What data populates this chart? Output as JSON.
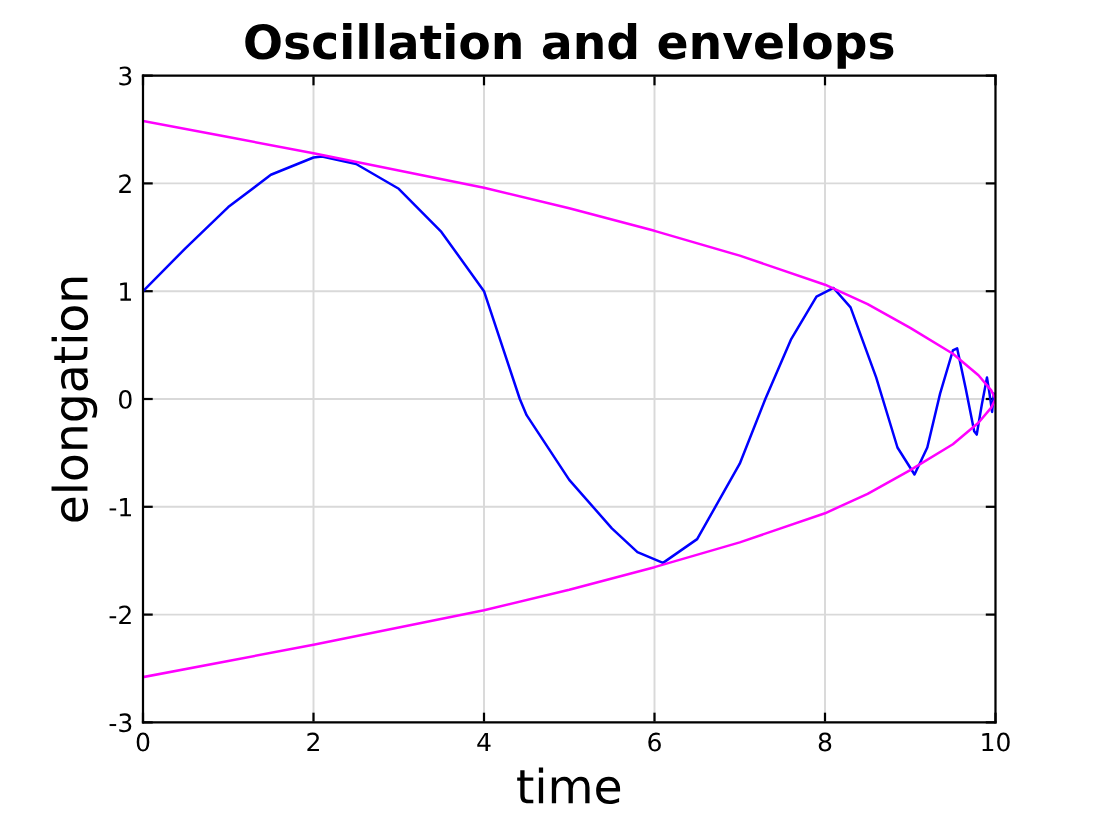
{
  "chart_data": {
    "type": "line",
    "title": "Oscillation and envelops",
    "xlabel": "time",
    "ylabel": "elongation",
    "xlim": [
      0,
      10
    ],
    "ylim": [
      -3,
      3
    ],
    "xticks": [
      0,
      2,
      4,
      6,
      8,
      10
    ],
    "yticks": [
      -3,
      -2,
      -1,
      0,
      1,
      2,
      3
    ],
    "grid": true,
    "series": [
      {
        "color": "#0000ff",
        "x": [
          0,
          0.5,
          1,
          1.5,
          2,
          2.1,
          2.5,
          3,
          3.5,
          4,
          4.42,
          4.5,
          5,
          5.5,
          5.8,
          6.1,
          6.5,
          7,
          7.3,
          7.6,
          7.9,
          8.1,
          8.3,
          8.6,
          8.85,
          9.05,
          9.2,
          9.35,
          9.5,
          9.55,
          9.65,
          9.75,
          9.78,
          9.84,
          9.9,
          9.93,
          9.96,
          9.98,
          10
        ],
        "values": [
          1.0,
          1.4,
          1.78,
          2.08,
          2.24,
          2.25,
          2.18,
          1.95,
          1.55,
          1.0,
          0,
          -0.15,
          -0.75,
          -1.2,
          -1.42,
          -1.52,
          -1.3,
          -0.6,
          0,
          0.55,
          0.95,
          1.03,
          0.85,
          0.2,
          -0.45,
          -0.7,
          -0.45,
          0.05,
          0.45,
          0.47,
          0.1,
          -0.3,
          -0.33,
          -0.05,
          0.2,
          0.05,
          -0.12,
          0.05,
          0
        ]
      },
      {
        "color": "#ff00ff",
        "x": [
          0,
          1,
          2,
          3,
          4,
          5,
          6,
          7,
          8,
          8.5,
          9,
          9.5,
          9.8,
          9.95,
          10
        ],
        "values": [
          2.58,
          2.43,
          2.28,
          2.12,
          1.96,
          1.77,
          1.56,
          1.33,
          1.06,
          0.88,
          0.66,
          0.42,
          0.22,
          0.08,
          0
        ]
      },
      {
        "color": "#ff00ff",
        "x": [
          0,
          1,
          2,
          3,
          4,
          5,
          6,
          7,
          8,
          8.5,
          9,
          9.5,
          9.8,
          9.95,
          10
        ],
        "values": [
          -2.58,
          -2.43,
          -2.28,
          -2.12,
          -1.96,
          -1.77,
          -1.56,
          -1.33,
          -1.06,
          -0.88,
          -0.66,
          -0.42,
          -0.22,
          -0.08,
          0
        ]
      }
    ]
  }
}
